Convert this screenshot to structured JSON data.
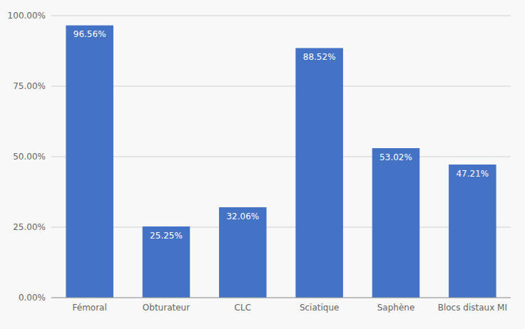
{
  "chart_data": {
    "type": "bar",
    "categories": [
      "Fémoral",
      "Obturateur",
      "CLC",
      "Sciatique",
      "Saphène",
      "Blocs distaux MI"
    ],
    "values": [
      96.56,
      25.25,
      32.06,
      88.52,
      53.02,
      47.21
    ],
    "value_labels": [
      "96.56%",
      "25.25%",
      "32.06%",
      "88.52%",
      "53.02%",
      "47.21%"
    ],
    "color": "#4472c4",
    "ylim": [
      0,
      100
    ],
    "yticks": [
      {
        "value": 0,
        "label": "0.00%"
      },
      {
        "value": 25,
        "label": "25.00%"
      },
      {
        "value": 50,
        "label": "50.00%"
      },
      {
        "value": 75,
        "label": "75.00%"
      },
      {
        "value": 100,
        "label": "100.00%"
      }
    ],
    "grid": true,
    "data_labels": true
  }
}
